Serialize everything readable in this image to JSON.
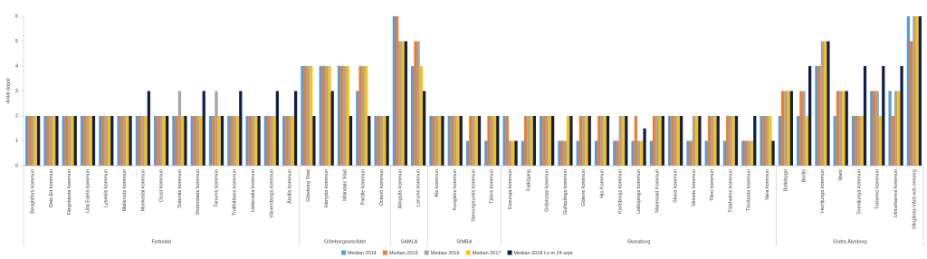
{
  "chart_data": {
    "type": "bar",
    "y_label": "Antal dagar",
    "ylim": [
      0,
      6
    ],
    "yticks": [
      0,
      1,
      2,
      3,
      4,
      5,
      6
    ],
    "grid": false,
    "legend": "bottom",
    "category_groups": [
      {
        "name": "Fyrbodal",
        "categories": [
          "Bengtsfors kommun",
          "Dals-Ed kommun",
          "Färgelanda kommun",
          "Lilla Edets kommun",
          "Lysekils kommun",
          "Melleruds kommun",
          "Munkedal kommun",
          "Orust kommun",
          "Sotenäs kommun",
          "Strömstads kommun",
          "Tanums kommun",
          "Trollhättans kommun",
          "Uddevalla kommun",
          "Vänersborgs kommun",
          "Åmåls kommun"
        ]
      },
      {
        "name": "Göteborgsområdet",
        "categories": [
          "Göteborg Stad",
          "Härryda kommun",
          "Mölndals Stad",
          "Partille kommun",
          "Öckerö kommun"
        ]
      },
      {
        "name": "SAMLA",
        "categories": [
          "Alingsås kommun",
          "Lerums kommun"
        ]
      },
      {
        "name": "SIMBA",
        "categories": [
          "Ale kommun",
          "Kungälvs kommun",
          "Stenungsunds kommun",
          "Tjörns kommun"
        ]
      },
      {
        "name": "Skaraborg",
        "categories": [
          "Essunga kommun",
          "Falköping",
          "Grästorps kommun",
          "Gullspångs kommun",
          "Götene kommun",
          "Hjo Kommun",
          "Karlsborgs kommun",
          "Lidköpings kommun",
          "Mariestad Kommun",
          "Skara kommun",
          "Skövde kommun",
          "Tibro kommun",
          "Tidaholms kommun",
          "Töreboda kommun",
          "Vara kommun"
        ]
      },
      {
        "name": "Södra Älvsborg",
        "categories": [
          "Bollebygd",
          "Borås",
          "Herrljunga kommun",
          "Mark",
          "Svenljunga kommun",
          "Tranemo kommun",
          "Ulricehamns kommun",
          "Vårgårda-Vård och omsorg"
        ]
      }
    ],
    "series": [
      {
        "name": "Median 2014",
        "color": "#5b9bd5",
        "values": [
          2,
          2,
          2,
          2,
          2,
          2,
          2,
          2,
          2,
          2,
          2,
          2,
          2,
          2,
          2,
          4,
          4,
          4,
          3,
          2,
          6,
          4,
          2,
          2,
          1,
          1,
          2,
          1,
          2,
          1,
          1,
          1,
          1,
          1,
          1,
          2,
          1,
          1,
          1,
          1,
          2,
          2,
          2,
          4,
          2,
          2,
          3,
          3,
          6
        ]
      },
      {
        "name": "Median 2015",
        "color": "#ed7d31",
        "values": [
          2,
          2,
          2,
          2,
          2,
          2,
          2,
          2,
          2,
          2,
          2,
          2,
          2,
          2,
          2,
          4,
          4,
          4,
          4,
          2,
          6,
          5,
          2,
          2,
          2,
          2,
          2,
          2,
          2,
          1,
          2,
          2,
          1,
          2,
          2,
          2,
          1,
          2,
          2,
          1,
          2,
          3,
          3,
          4,
          3,
          2,
          3,
          2,
          5
        ]
      },
      {
        "name": "Median 2016",
        "color": "#a5a5a5",
        "values": [
          2,
          2,
          2,
          2,
          2,
          2,
          2,
          2,
          3,
          2,
          3,
          2,
          2,
          2,
          2,
          4,
          4,
          4,
          4,
          2,
          5,
          5,
          2,
          2,
          2,
          2,
          1,
          2,
          2,
          1,
          2,
          2,
          2,
          1,
          2,
          2,
          2,
          2,
          2,
          1,
          2,
          3,
          3,
          5,
          3,
          2,
          3,
          3,
          6
        ]
      },
      {
        "name": "Median 2017",
        "color": "#ffc000",
        "values": [
          2,
          2,
          2,
          2,
          2,
          2,
          2,
          2,
          2,
          2,
          2,
          2,
          2,
          2,
          2,
          4,
          4,
          4,
          4,
          2,
          5,
          4,
          2,
          2,
          2,
          2,
          1,
          2,
          2,
          2,
          2,
          2,
          2,
          1,
          2,
          2,
          2,
          2,
          2,
          1,
          2,
          3,
          2,
          5,
          3,
          2,
          2,
          3,
          6
        ]
      },
      {
        "name": "Median 2018 t.o.m 24 sept",
        "color": "#0e1f4f",
        "values": [
          2,
          2,
          2,
          2,
          2,
          2,
          3,
          2,
          2,
          3,
          2,
          3,
          2,
          3,
          3,
          2,
          3,
          2,
          2,
          2,
          5,
          3,
          2,
          2,
          2,
          2,
          1,
          2,
          2,
          2,
          2,
          2,
          2,
          1.5,
          2,
          2,
          2,
          2,
          2,
          2,
          1,
          3,
          4,
          5,
          3,
          4,
          4,
          4,
          6
        ]
      }
    ]
  }
}
